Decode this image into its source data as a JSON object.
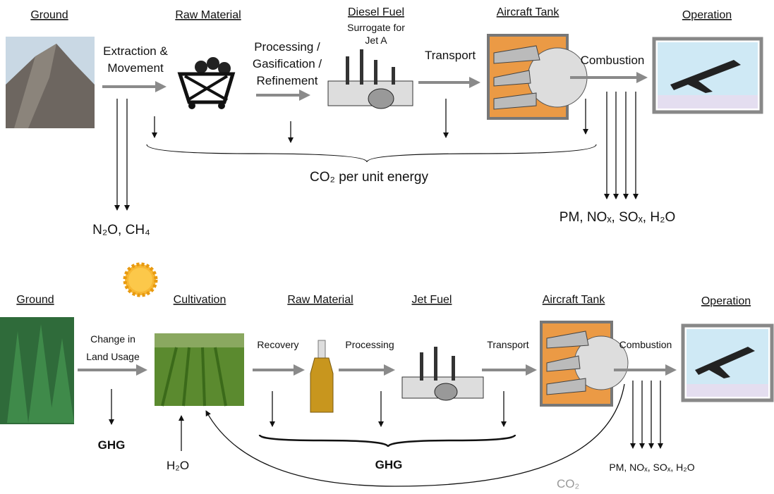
{
  "top": {
    "stages": [
      "Ground",
      "Raw Material",
      "Diesel Fuel",
      "Aircraft Tank",
      "Operation"
    ],
    "fuel_note": [
      "Surrogate for",
      "Jet A"
    ],
    "steps": {
      "extraction": [
        "Extraction &",
        "Movement"
      ],
      "processing": [
        "Processing /",
        "Gasification /",
        "Refinement"
      ],
      "transport": "Transport",
      "combustion": "Combustion"
    },
    "co2": "CO₂ per unit energy",
    "ground_emissions": "N₂O, CH₄",
    "combustion_emissions": "PM, NOₓ, SOₓ, H₂O"
  },
  "bottom": {
    "stages": [
      "Ground",
      "Cultivation",
      "Raw Material",
      "Jet Fuel",
      "Aircraft Tank",
      "Operation"
    ],
    "steps": {
      "land": [
        "Change in",
        "Land Usage"
      ],
      "recovery": "Recovery",
      "processing": "Processing",
      "transport": "Transport",
      "combustion": "Combustion"
    },
    "ghg_land": "GHG",
    "water": "H₂O",
    "ghg_process": "GHG",
    "combustion_emissions": "PM, NOₓ, SOₓ, H₂O",
    "recycle": "CO₂"
  }
}
